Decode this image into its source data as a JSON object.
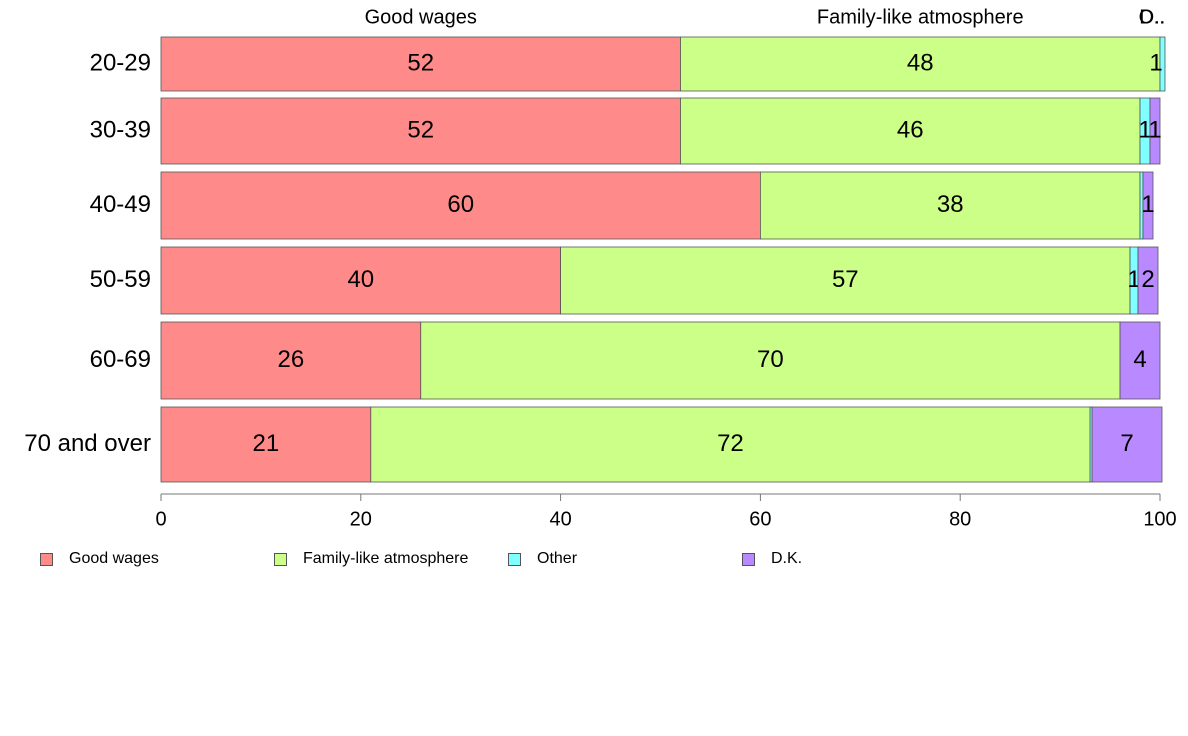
{
  "chart_data": {
    "type": "bar",
    "orientation": "horizontal",
    "stacked": true,
    "categories": [
      "20-29",
      "30-39",
      "40-49",
      "50-59",
      "60-69",
      "70 and over"
    ],
    "series": [
      {
        "name": "Good wages",
        "color": "#FF8A8A",
        "values": [
          52,
          52,
          60,
          40,
          26,
          21
        ],
        "labels": [
          "52",
          "52",
          "60",
          "40",
          "26",
          "21"
        ]
      },
      {
        "name": "Family-like atmosphere",
        "color": "#CCFF88",
        "values": [
          48,
          46,
          38,
          57,
          70,
          72
        ],
        "labels": [
          "48",
          "46",
          "38",
          "57",
          "70",
          "72"
        ]
      },
      {
        "name": "Other",
        "color": "#7FFFFF",
        "values": [
          0.5,
          1,
          0.3,
          0.8,
          0,
          0.2
        ],
        "labels": [
          "1",
          "1",
          "",
          "1",
          "",
          ""
        ]
      },
      {
        "name": "D.K.",
        "color": "#B98AFF",
        "values": [
          0,
          1,
          1,
          2,
          4,
          7
        ],
        "labels": [
          "",
          "1",
          "1",
          "2",
          "4",
          "7"
        ]
      }
    ],
    "top_labels": [
      "Good wages",
      "Family-like atmosphere",
      "Other",
      "D.K."
    ],
    "xlim": [
      0,
      100
    ],
    "xticks": [
      0,
      20,
      40,
      60,
      80,
      100
    ],
    "legend_position": "bottom"
  }
}
